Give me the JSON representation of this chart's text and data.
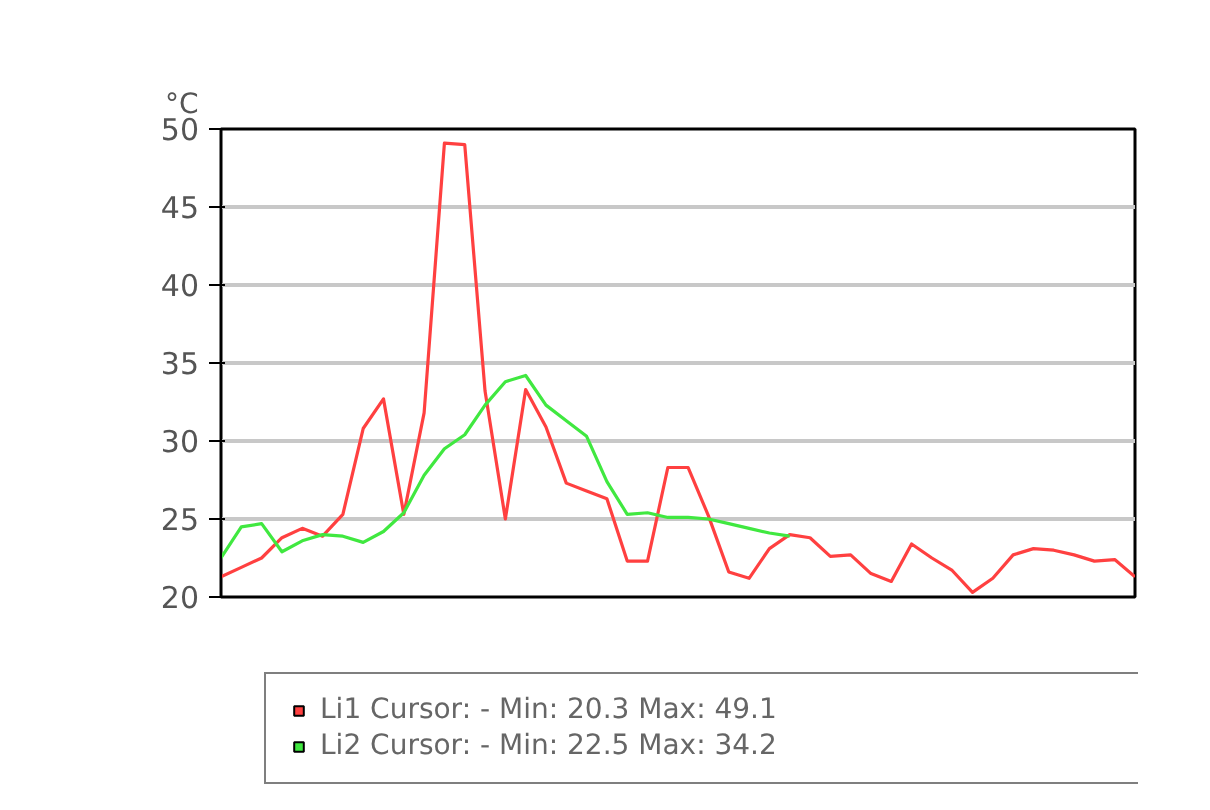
{
  "chart_data": {
    "type": "line",
    "ylabel": "°C",
    "ylim": [
      20,
      50
    ],
    "yticks": [
      20,
      25,
      30,
      35,
      40,
      45,
      50
    ],
    "tick_labels": "y",
    "grid": "y",
    "legend": "bottom",
    "marker": "none",
    "line_style": "solid",
    "categories": [
      null,
      null,
      null,
      null,
      null,
      null,
      null,
      null,
      null,
      null,
      null,
      null,
      null,
      null,
      null,
      null,
      null,
      null,
      null,
      null,
      null,
      null,
      null,
      null,
      null,
      null,
      null,
      null,
      null,
      null,
      null,
      null,
      null,
      null,
      null,
      null,
      null,
      null,
      null,
      null,
      null,
      null,
      null,
      null,
      null,
      null
    ],
    "series": [
      {
        "name": "Li1 Cursor: - Min: 20.3 Max: 49.1",
        "color": "#ff4040",
        "values": [
          21.3,
          21.9,
          22.5,
          23.8,
          24.4,
          23.9,
          25.3,
          30.8,
          32.7,
          25.3,
          31.8,
          49.1,
          49.0,
          33.2,
          25.0,
          33.3,
          30.9,
          27.3,
          26.8,
          26.3,
          22.3,
          22.3,
          28.3,
          28.3,
          25.2,
          21.6,
          21.2,
          23.1,
          24.0,
          23.8,
          22.6,
          22.7,
          21.5,
          21.0,
          23.4,
          22.5,
          21.7,
          20.3,
          21.2,
          22.7,
          23.1,
          23.0,
          22.7,
          22.3,
          22.4,
          21.3
        ]
      },
      {
        "name": "Li2 Cursor: - Min: 22.5 Max: 34.2",
        "color": "#40e840",
        "values": [
          22.5,
          24.5,
          24.7,
          22.9,
          23.6,
          24.0,
          23.9,
          23.5,
          24.2,
          25.4,
          27.8,
          29.5,
          30.4,
          32.3,
          33.8,
          34.2,
          32.3,
          31.3,
          30.3,
          27.4,
          25.3,
          25.4,
          25.1,
          25.1,
          25.0,
          24.7,
          24.4,
          24.1,
          23.9,
          null,
          null,
          null,
          null,
          null,
          null,
          null,
          null,
          null,
          null,
          null,
          null,
          null,
          null,
          null,
          null,
          null
        ]
      }
    ]
  }
}
